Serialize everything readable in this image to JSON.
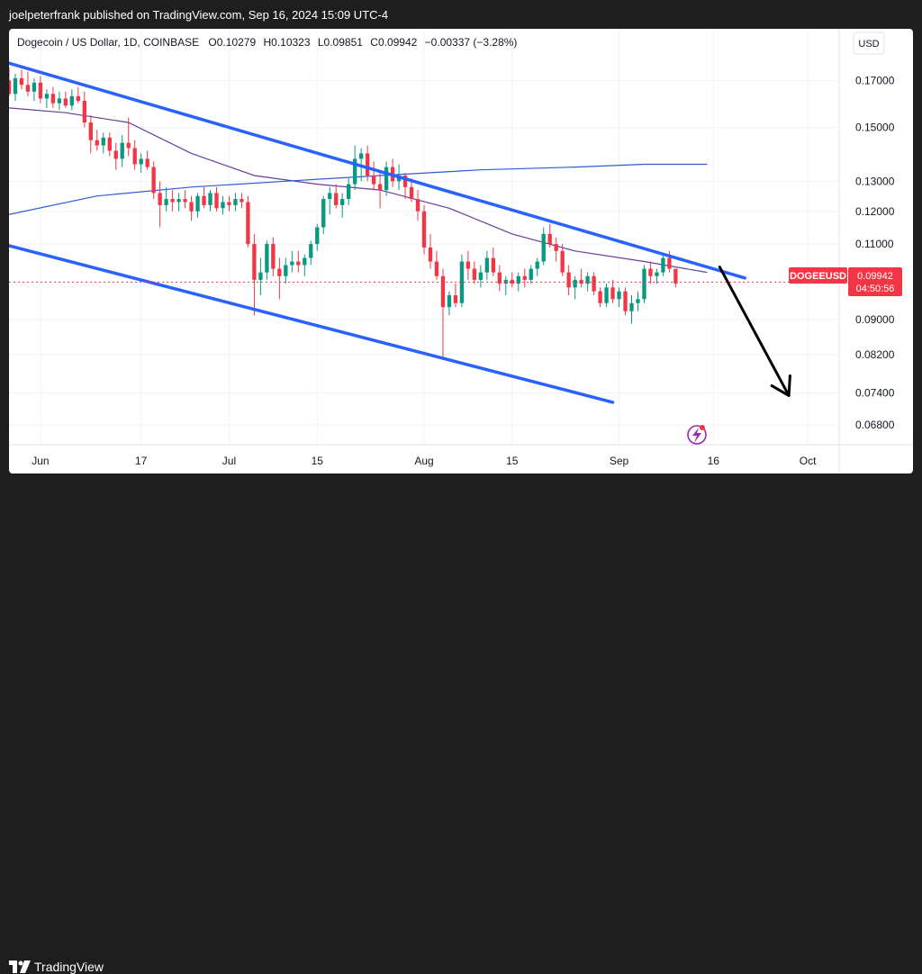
{
  "header": {
    "published": "joelpeterfrank published on TradingView.com, Sep 16, 2024 15:09 UTC-4"
  },
  "chart_data": {
    "type": "candlestick",
    "symbol_line": {
      "name": "Dogecoin / US Dollar, 1D, COINBASE",
      "open": "O0.10279",
      "high": "H0.10323",
      "low": "L0.09851",
      "close": "C0.09942",
      "change": "−0.00337 (−3.28%)"
    },
    "currency": "USD",
    "y_scale": "log",
    "ylim": [
      0.0645,
      0.1815
    ],
    "y_ticks": [
      {
        "value": 0.17,
        "label": "0.17000"
      },
      {
        "value": 0.15,
        "label": "0.15000"
      },
      {
        "value": 0.13,
        "label": "0.13000"
      },
      {
        "value": 0.12,
        "label": "0.12000"
      },
      {
        "value": 0.11,
        "label": "0.11000"
      },
      {
        "value": 0.09,
        "label": "0.09000"
      },
      {
        "value": 0.082,
        "label": "0.08200"
      },
      {
        "value": 0.074,
        "label": "0.07400"
      },
      {
        "value": 0.068,
        "label": "0.06800"
      }
    ],
    "x_start": "2024-05-27",
    "x_end": "2024-10-06",
    "x_ticks": [
      {
        "date": "2024-06-01",
        "label": "Jun"
      },
      {
        "date": "2024-06-17",
        "label": "17"
      },
      {
        "date": "2024-07-01",
        "label": "Jul"
      },
      {
        "date": "2024-07-15",
        "label": "15"
      },
      {
        "date": "2024-08-01",
        "label": "Aug"
      },
      {
        "date": "2024-08-15",
        "label": "15"
      },
      {
        "date": "2024-09-01",
        "label": "Sep"
      },
      {
        "date": "2024-09-16",
        "label": "16"
      },
      {
        "date": "2024-10-01",
        "label": "Oct"
      }
    ],
    "first_candle_date": "2024-05-27",
    "candles": [
      [
        0.17,
        0.176,
        0.163,
        0.164
      ],
      [
        0.164,
        0.173,
        0.161,
        0.171
      ],
      [
        0.171,
        0.175,
        0.166,
        0.168
      ],
      [
        0.168,
        0.174,
        0.163,
        0.165
      ],
      [
        0.165,
        0.171,
        0.161,
        0.169
      ],
      [
        0.169,
        0.172,
        0.16,
        0.162
      ],
      [
        0.162,
        0.166,
        0.158,
        0.164
      ],
      [
        0.164,
        0.167,
        0.158,
        0.16
      ],
      [
        0.16,
        0.165,
        0.157,
        0.162
      ],
      [
        0.162,
        0.165,
        0.158,
        0.159
      ],
      [
        0.159,
        0.166,
        0.157,
        0.163
      ],
      [
        0.163,
        0.167,
        0.16,
        0.161
      ],
      [
        0.161,
        0.165,
        0.15,
        0.152
      ],
      [
        0.152,
        0.155,
        0.14,
        0.145
      ],
      [
        0.145,
        0.149,
        0.141,
        0.143
      ],
      [
        0.143,
        0.148,
        0.14,
        0.146
      ],
      [
        0.146,
        0.148,
        0.139,
        0.141
      ],
      [
        0.141,
        0.144,
        0.134,
        0.138
      ],
      [
        0.138,
        0.147,
        0.135,
        0.144
      ],
      [
        0.144,
        0.154,
        0.139,
        0.142
      ],
      [
        0.142,
        0.145,
        0.134,
        0.136
      ],
      [
        0.136,
        0.14,
        0.133,
        0.138
      ],
      [
        0.138,
        0.141,
        0.134,
        0.135
      ],
      [
        0.135,
        0.137,
        0.124,
        0.126
      ],
      [
        0.126,
        0.13,
        0.115,
        0.122
      ],
      [
        0.122,
        0.128,
        0.12,
        0.124
      ],
      [
        0.124,
        0.127,
        0.12,
        0.123
      ],
      [
        0.123,
        0.126,
        0.12,
        0.124
      ],
      [
        0.124,
        0.127,
        0.121,
        0.123
      ],
      [
        0.123,
        0.125,
        0.117,
        0.12
      ],
      [
        0.12,
        0.126,
        0.118,
        0.125
      ],
      [
        0.125,
        0.128,
        0.121,
        0.122
      ],
      [
        0.122,
        0.127,
        0.12,
        0.126
      ],
      [
        0.126,
        0.128,
        0.12,
        0.121
      ],
      [
        0.121,
        0.125,
        0.119,
        0.123
      ],
      [
        0.123,
        0.125,
        0.12,
        0.122
      ],
      [
        0.122,
        0.126,
        0.12,
        0.124
      ],
      [
        0.124,
        0.126,
        0.121,
        0.123
      ],
      [
        0.123,
        0.125,
        0.109,
        0.11
      ],
      [
        0.11,
        0.113,
        0.091,
        0.1
      ],
      [
        0.1,
        0.106,
        0.096,
        0.102
      ],
      [
        0.102,
        0.111,
        0.1,
        0.11
      ],
      [
        0.11,
        0.112,
        0.101,
        0.103
      ],
      [
        0.103,
        0.106,
        0.095,
        0.101
      ],
      [
        0.101,
        0.106,
        0.099,
        0.104
      ],
      [
        0.104,
        0.108,
        0.102,
        0.105
      ],
      [
        0.105,
        0.108,
        0.102,
        0.104
      ],
      [
        0.104,
        0.107,
        0.101,
        0.106
      ],
      [
        0.106,
        0.111,
        0.104,
        0.11
      ],
      [
        0.11,
        0.116,
        0.108,
        0.115
      ],
      [
        0.115,
        0.125,
        0.113,
        0.124
      ],
      [
        0.124,
        0.128,
        0.119,
        0.126
      ],
      [
        0.126,
        0.129,
        0.121,
        0.122
      ],
      [
        0.122,
        0.126,
        0.118,
        0.124
      ],
      [
        0.124,
        0.131,
        0.122,
        0.129
      ],
      [
        0.129,
        0.143,
        0.127,
        0.138
      ],
      [
        0.138,
        0.142,
        0.13,
        0.14
      ],
      [
        0.14,
        0.143,
        0.13,
        0.132
      ],
      [
        0.132,
        0.137,
        0.127,
        0.129
      ],
      [
        0.129,
        0.133,
        0.121,
        0.127
      ],
      [
        0.127,
        0.137,
        0.125,
        0.135
      ],
      [
        0.135,
        0.138,
        0.128,
        0.13
      ],
      [
        0.13,
        0.136,
        0.127,
        0.132
      ],
      [
        0.132,
        0.133,
        0.124,
        0.128
      ],
      [
        0.128,
        0.131,
        0.123,
        0.124
      ],
      [
        0.124,
        0.127,
        0.117,
        0.12
      ],
      [
        0.12,
        0.122,
        0.107,
        0.109
      ],
      [
        0.109,
        0.113,
        0.103,
        0.105
      ],
      [
        0.105,
        0.108,
        0.1,
        0.101
      ],
      [
        0.101,
        0.103,
        0.081,
        0.093
      ],
      [
        0.093,
        0.097,
        0.091,
        0.096
      ],
      [
        0.096,
        0.099,
        0.093,
        0.094
      ],
      [
        0.094,
        0.107,
        0.093,
        0.105
      ],
      [
        0.105,
        0.108,
        0.1,
        0.103
      ],
      [
        0.103,
        0.105,
        0.099,
        0.1
      ],
      [
        0.1,
        0.104,
        0.098,
        0.102
      ],
      [
        0.102,
        0.108,
        0.1,
        0.106
      ],
      [
        0.106,
        0.109,
        0.101,
        0.102
      ],
      [
        0.102,
        0.104,
        0.097,
        0.099
      ],
      [
        0.099,
        0.101,
        0.096,
        0.1
      ],
      [
        0.1,
        0.102,
        0.098,
        0.099
      ],
      [
        0.099,
        0.102,
        0.097,
        0.101
      ],
      [
        0.101,
        0.103,
        0.098,
        0.1
      ],
      [
        0.1,
        0.104,
        0.099,
        0.103
      ],
      [
        0.103,
        0.106,
        0.101,
        0.105
      ],
      [
        0.105,
        0.115,
        0.104,
        0.113
      ],
      [
        0.113,
        0.116,
        0.109,
        0.11
      ],
      [
        0.11,
        0.112,
        0.105,
        0.108
      ],
      [
        0.108,
        0.11,
        0.101,
        0.102
      ],
      [
        0.102,
        0.104,
        0.096,
        0.098
      ],
      [
        0.098,
        0.101,
        0.095,
        0.1
      ],
      [
        0.1,
        0.103,
        0.098,
        0.099
      ],
      [
        0.099,
        0.102,
        0.097,
        0.101
      ],
      [
        0.101,
        0.102,
        0.096,
        0.097
      ],
      [
        0.097,
        0.098,
        0.093,
        0.094
      ],
      [
        0.094,
        0.099,
        0.093,
        0.098
      ],
      [
        0.098,
        0.1,
        0.094,
        0.095
      ],
      [
        0.095,
        0.098,
        0.093,
        0.097
      ],
      [
        0.097,
        0.098,
        0.091,
        0.092
      ],
      [
        0.092,
        0.096,
        0.089,
        0.094
      ],
      [
        0.094,
        0.097,
        0.092,
        0.095
      ],
      [
        0.095,
        0.104,
        0.094,
        0.103
      ],
      [
        0.103,
        0.105,
        0.099,
        0.101
      ],
      [
        0.101,
        0.103,
        0.099,
        0.102
      ],
      [
        0.102,
        0.107,
        0.101,
        0.106
      ],
      [
        0.106,
        0.108,
        0.102,
        0.103
      ],
      [
        0.103,
        0.103,
        0.098,
        0.099
      ]
    ],
    "moving_averages": [
      {
        "points": [
          [
            "2024-05-27",
            0.158
          ],
          [
            "2024-06-05",
            0.156
          ],
          [
            "2024-06-15",
            0.152
          ],
          [
            "2024-06-25",
            0.14
          ],
          [
            "2024-07-05",
            0.132
          ],
          [
            "2024-07-15",
            0.129
          ],
          [
            "2024-07-25",
            0.127
          ],
          [
            "2024-08-05",
            0.121
          ],
          [
            "2024-08-15",
            0.113
          ],
          [
            "2024-08-25",
            0.108
          ],
          [
            "2024-09-05",
            0.105
          ],
          [
            "2024-09-15",
            0.102
          ]
        ]
      },
      {
        "points": [
          [
            "2024-05-27",
            0.119
          ],
          [
            "2024-06-10",
            0.125
          ],
          [
            "2024-06-25",
            0.128
          ],
          [
            "2024-07-10",
            0.13
          ],
          [
            "2024-07-25",
            0.132
          ],
          [
            "2024-08-10",
            0.134
          ],
          [
            "2024-08-25",
            0.135
          ],
          [
            "2024-09-05",
            0.136
          ],
          [
            "2024-09-15",
            0.136
          ]
        ]
      }
    ],
    "channel_lines": [
      {
        "from": [
          "2024-05-27",
          0.178
        ],
        "to": [
          "2024-09-21",
          0.1005
        ]
      },
      {
        "from": [
          "2024-05-27",
          0.1095
        ],
        "to": [
          "2024-08-31",
          0.0722
        ]
      }
    ],
    "projection_arrow": {
      "from": [
        "2024-09-17",
        0.1035
      ],
      "to": [
        "2024-09-28",
        0.0735
      ]
    },
    "last_price": {
      "symbol": "DOGEEUSD",
      "price": "0.09942",
      "countdown": "04:50:56",
      "value": 0.09942
    },
    "colors": {
      "up": "#089981",
      "down": "#f23645",
      "channel": "#2962ff",
      "ma_fast": "#6a3d9a",
      "ma_slow": "#2e5ad6",
      "price_line": "#f23645",
      "arrow": "#000000",
      "flash_badge": "#9c27b0"
    }
  },
  "footer": {
    "brand": "TradingView"
  }
}
